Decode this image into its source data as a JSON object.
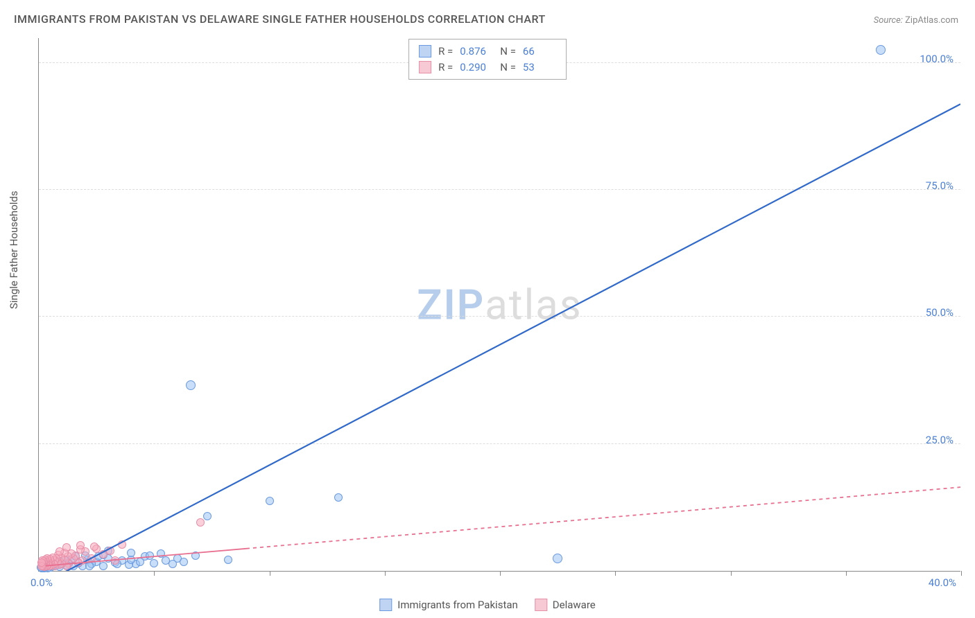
{
  "title": "IMMIGRANTS FROM PAKISTAN VS DELAWARE SINGLE FATHER HOUSEHOLDS CORRELATION CHART",
  "source_label": "Source:",
  "source_value": "ZipAtlas.com",
  "y_axis_title": "Single Father Households",
  "watermark_zip": "ZIP",
  "watermark_atlas": "atlas",
  "chart": {
    "type": "scatter",
    "background_color": "#ffffff",
    "grid_color": "#dddddd",
    "axis_color": "#888888",
    "xlim": [
      0,
      40
    ],
    "ylim": [
      0,
      105
    ],
    "x_origin_label": "0.0%",
    "x_end_label": "40.0%",
    "y_tick_labels": [
      "25.0%",
      "50.0%",
      "75.0%",
      "100.0%"
    ],
    "y_tick_values": [
      25,
      50,
      75,
      100
    ],
    "x_tick_values": [
      0,
      5,
      10,
      15,
      20,
      25,
      30,
      35,
      40
    ],
    "series": [
      {
        "name": "Immigrants from Pakistan",
        "color_fill": "#bfd4f2",
        "color_stroke": "#6b9ae0",
        "marker_size": 12,
        "trend_color": "#3069c9",
        "trend_width": 2.2,
        "trend_dash": "none",
        "trend_start": [
          0.8,
          -1
        ],
        "trend_end": [
          40,
          92
        ],
        "legend_r": "0.876",
        "legend_n": "66",
        "points": [
          [
            36.5,
            102.5
          ],
          [
            6.6,
            36.5
          ],
          [
            10.0,
            13.8
          ],
          [
            13.0,
            14.5
          ],
          [
            22.5,
            2.4
          ],
          [
            8.2,
            2.2
          ],
          [
            7.3,
            10.8
          ],
          [
            5.5,
            2.0
          ],
          [
            6.0,
            2.5
          ],
          [
            6.3,
            1.8
          ],
          [
            5.0,
            1.5
          ],
          [
            4.6,
            2.8
          ],
          [
            4.2,
            1.4
          ],
          [
            4.8,
            3.0
          ],
          [
            3.9,
            1.2
          ],
          [
            3.6,
            2.0
          ],
          [
            3.3,
            1.6
          ],
          [
            3.0,
            2.4
          ],
          [
            2.8,
            1.0
          ],
          [
            2.5,
            1.8
          ],
          [
            2.3,
            1.3
          ],
          [
            2.1,
            2.2
          ],
          [
            1.9,
            1.0
          ],
          [
            1.7,
            1.5
          ],
          [
            1.5,
            0.9
          ],
          [
            1.3,
            1.7
          ],
          [
            1.2,
            1.1
          ],
          [
            1.0,
            1.4
          ],
          [
            0.9,
            0.8
          ],
          [
            0.8,
            1.2
          ],
          [
            0.7,
            0.9
          ],
          [
            0.6,
            1.0
          ],
          [
            0.5,
            0.7
          ],
          [
            0.45,
            1.3
          ],
          [
            0.4,
            0.6
          ],
          [
            0.35,
            0.9
          ],
          [
            0.3,
            0.8
          ],
          [
            0.28,
            1.1
          ],
          [
            0.25,
            0.6
          ],
          [
            0.22,
            0.9
          ],
          [
            0.2,
            0.7
          ],
          [
            0.18,
            1.0
          ],
          [
            0.17,
            0.5
          ],
          [
            0.15,
            0.8
          ],
          [
            0.14,
            0.6
          ],
          [
            0.12,
            0.9
          ],
          [
            0.11,
            0.5
          ],
          [
            0.1,
            0.7
          ],
          [
            3.0,
            4.0
          ],
          [
            4.0,
            2.2
          ],
          [
            5.3,
            3.4
          ],
          [
            2.0,
            3.0
          ],
          [
            1.4,
            2.3
          ],
          [
            2.6,
            2.9
          ],
          [
            3.4,
            1.3
          ],
          [
            4.4,
            1.8
          ],
          [
            5.8,
            1.4
          ],
          [
            1.1,
            2.0
          ],
          [
            0.6,
            1.6
          ],
          [
            2.2,
            1.0
          ],
          [
            6.8,
            3.0
          ],
          [
            4.0,
            3.5
          ],
          [
            2.8,
            3.2
          ],
          [
            1.6,
            2.8
          ],
          [
            0.9,
            1.9
          ],
          [
            0.5,
            1.4
          ]
        ]
      },
      {
        "name": "Delaware",
        "color_fill": "#f6c9d5",
        "color_stroke": "#e88fa8",
        "marker_size": 12,
        "trend_color": "#e86f8f",
        "trend_width": 1.8,
        "trend_dash": "5,5",
        "trend_start": [
          0.3,
          1.0
        ],
        "trend_end": [
          40,
          16.5
        ],
        "trend_solid_until": 9.0,
        "legend_r": "0.290",
        "legend_n": "53",
        "points": [
          [
            7.0,
            9.5
          ],
          [
            3.6,
            5.2
          ],
          [
            3.1,
            4.0
          ],
          [
            2.8,
            3.3
          ],
          [
            2.5,
            4.4
          ],
          [
            2.3,
            2.5
          ],
          [
            2.0,
            3.8
          ],
          [
            1.9,
            2.0
          ],
          [
            1.8,
            4.2
          ],
          [
            1.7,
            1.7
          ],
          [
            1.6,
            3.0
          ],
          [
            1.5,
            2.4
          ],
          [
            1.4,
            3.4
          ],
          [
            1.3,
            1.3
          ],
          [
            1.25,
            2.8
          ],
          [
            1.2,
            1.0
          ],
          [
            1.15,
            2.2
          ],
          [
            1.1,
            3.6
          ],
          [
            1.0,
            1.5
          ],
          [
            0.95,
            2.6
          ],
          [
            0.9,
            1.2
          ],
          [
            0.85,
            3.2
          ],
          [
            0.8,
            1.8
          ],
          [
            0.75,
            2.4
          ],
          [
            0.7,
            1.0
          ],
          [
            0.68,
            2.0
          ],
          [
            0.65,
            1.4
          ],
          [
            0.6,
            2.6
          ],
          [
            0.55,
            1.1
          ],
          [
            0.5,
            1.9
          ],
          [
            0.48,
            2.3
          ],
          [
            0.45,
            0.9
          ],
          [
            0.42,
            1.6
          ],
          [
            0.4,
            2.1
          ],
          [
            0.38,
            1.2
          ],
          [
            0.35,
            2.5
          ],
          [
            0.32,
            1.0
          ],
          [
            0.3,
            1.8
          ],
          [
            0.28,
            1.3
          ],
          [
            0.26,
            2.2
          ],
          [
            0.24,
            0.8
          ],
          [
            0.22,
            1.5
          ],
          [
            0.2,
            1.9
          ],
          [
            0.18,
            1.0
          ],
          [
            0.16,
            1.4
          ],
          [
            0.15,
            2.0
          ],
          [
            0.13,
            0.9
          ],
          [
            0.12,
            1.6
          ],
          [
            2.4,
            4.8
          ],
          [
            1.8,
            5.0
          ],
          [
            1.2,
            4.6
          ],
          [
            0.9,
            3.8
          ],
          [
            3.3,
            2.0
          ]
        ]
      }
    ]
  },
  "legend_bottom": [
    {
      "swatch": "blue",
      "label": "Immigrants from Pakistan"
    },
    {
      "swatch": "pink",
      "label": "Delaware"
    }
  ],
  "legend_top_labels": {
    "r": "R  =",
    "n": "N  ="
  }
}
